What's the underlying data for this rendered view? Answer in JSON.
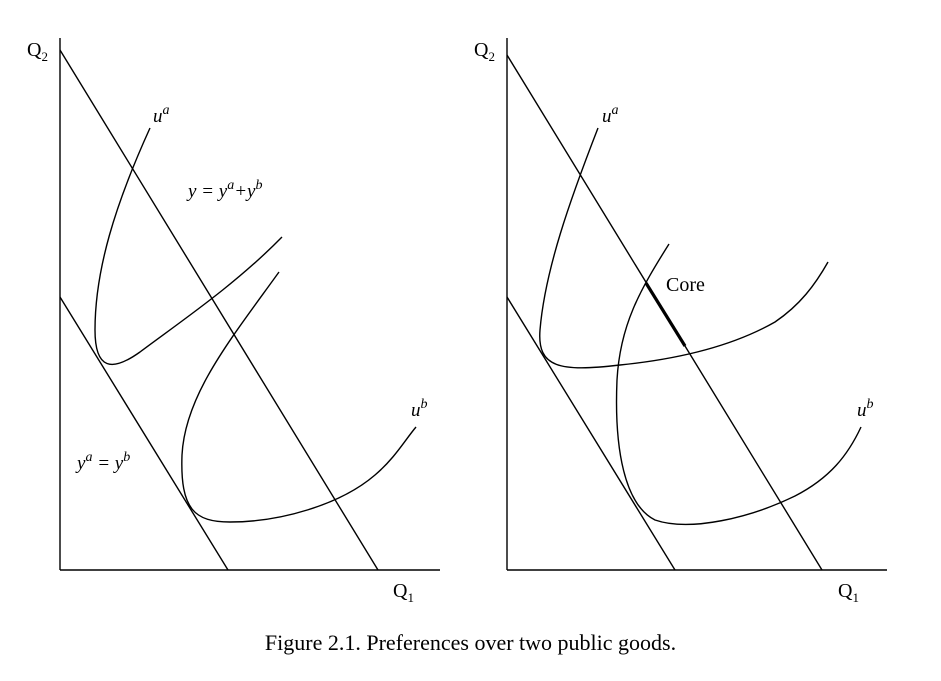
{
  "left_panel": {
    "y_axis_label": "Q",
    "y_axis_sub": "2",
    "x_axis_label": "Q",
    "x_axis_sub": "1",
    "curve_a_base": "u",
    "curve_a_sup": "a",
    "curve_b_base": "u",
    "curve_b_sup": "b",
    "budget_high": {
      "p1": "y = y",
      "s1": "a",
      "p2": "+y",
      "s2": "b"
    },
    "budget_low": {
      "p1": "y",
      "s1": "a",
      "p2": " = y",
      "s2": "b"
    }
  },
  "right_panel": {
    "y_axis_label": "Q",
    "y_axis_sub": "2",
    "x_axis_label": "Q",
    "x_axis_sub": "1",
    "curve_a_base": "u",
    "curve_a_sup": "a",
    "curve_b_base": "u",
    "curve_b_sup": "b",
    "core_label": "Core"
  },
  "caption": "Figure 2.1. Preferences over two public goods."
}
